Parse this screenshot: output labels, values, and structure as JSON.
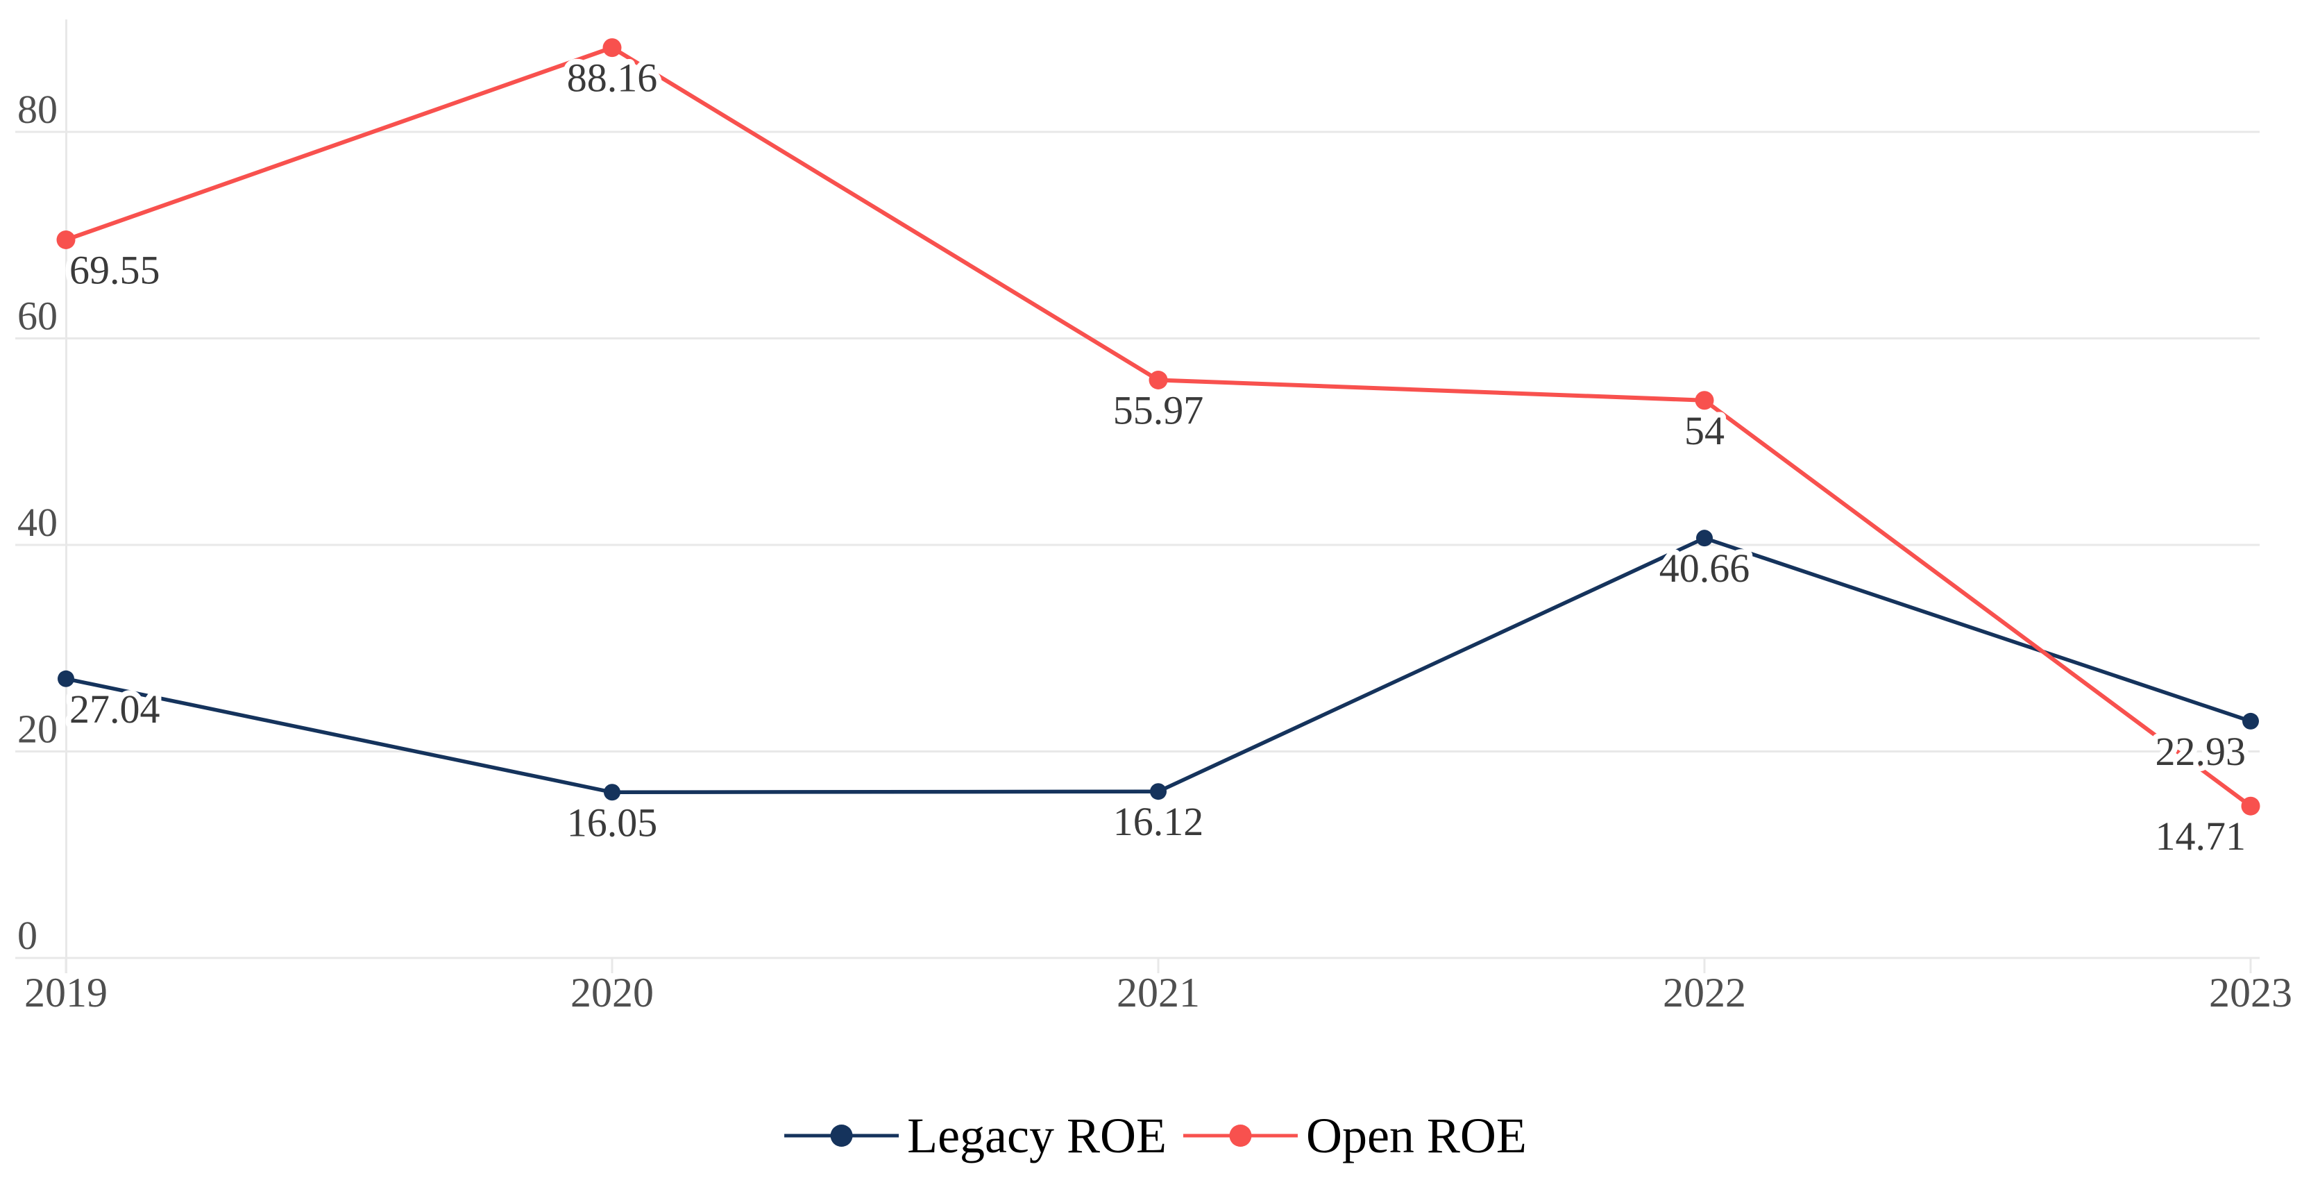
{
  "chart_data": {
    "type": "line",
    "title": "",
    "xlabel": "",
    "ylabel": "",
    "categories": [
      "2019",
      "2020",
      "2021",
      "2022",
      "2023"
    ],
    "series": [
      {
        "name": "Legacy ROE",
        "color": "#15335C",
        "values": [
          27.04,
          16.05,
          16.12,
          40.66,
          22.93
        ],
        "point_labels": [
          "27.04",
          "16.05",
          "16.12",
          "40.66",
          "22.93"
        ]
      },
      {
        "name": "Open ROE",
        "color": "#F8514E",
        "values": [
          69.55,
          88.16,
          55.97,
          54,
          14.71
        ],
        "point_labels": [
          "69.55",
          "88.16",
          "55.97",
          "54",
          "14.71"
        ]
      }
    ],
    "y_ticks": [
      0,
      20,
      40,
      60,
      80
    ],
    "ylim": [
      0,
      91
    ],
    "grid": true,
    "legend_position": "bottom-center"
  },
  "colors": {
    "background": "#FFFFFF",
    "gridline": "#E8E8E8",
    "axis_text": "#4F4F4F",
    "data_label_text": "#3A3A3A",
    "legend_text": "#000000"
  }
}
